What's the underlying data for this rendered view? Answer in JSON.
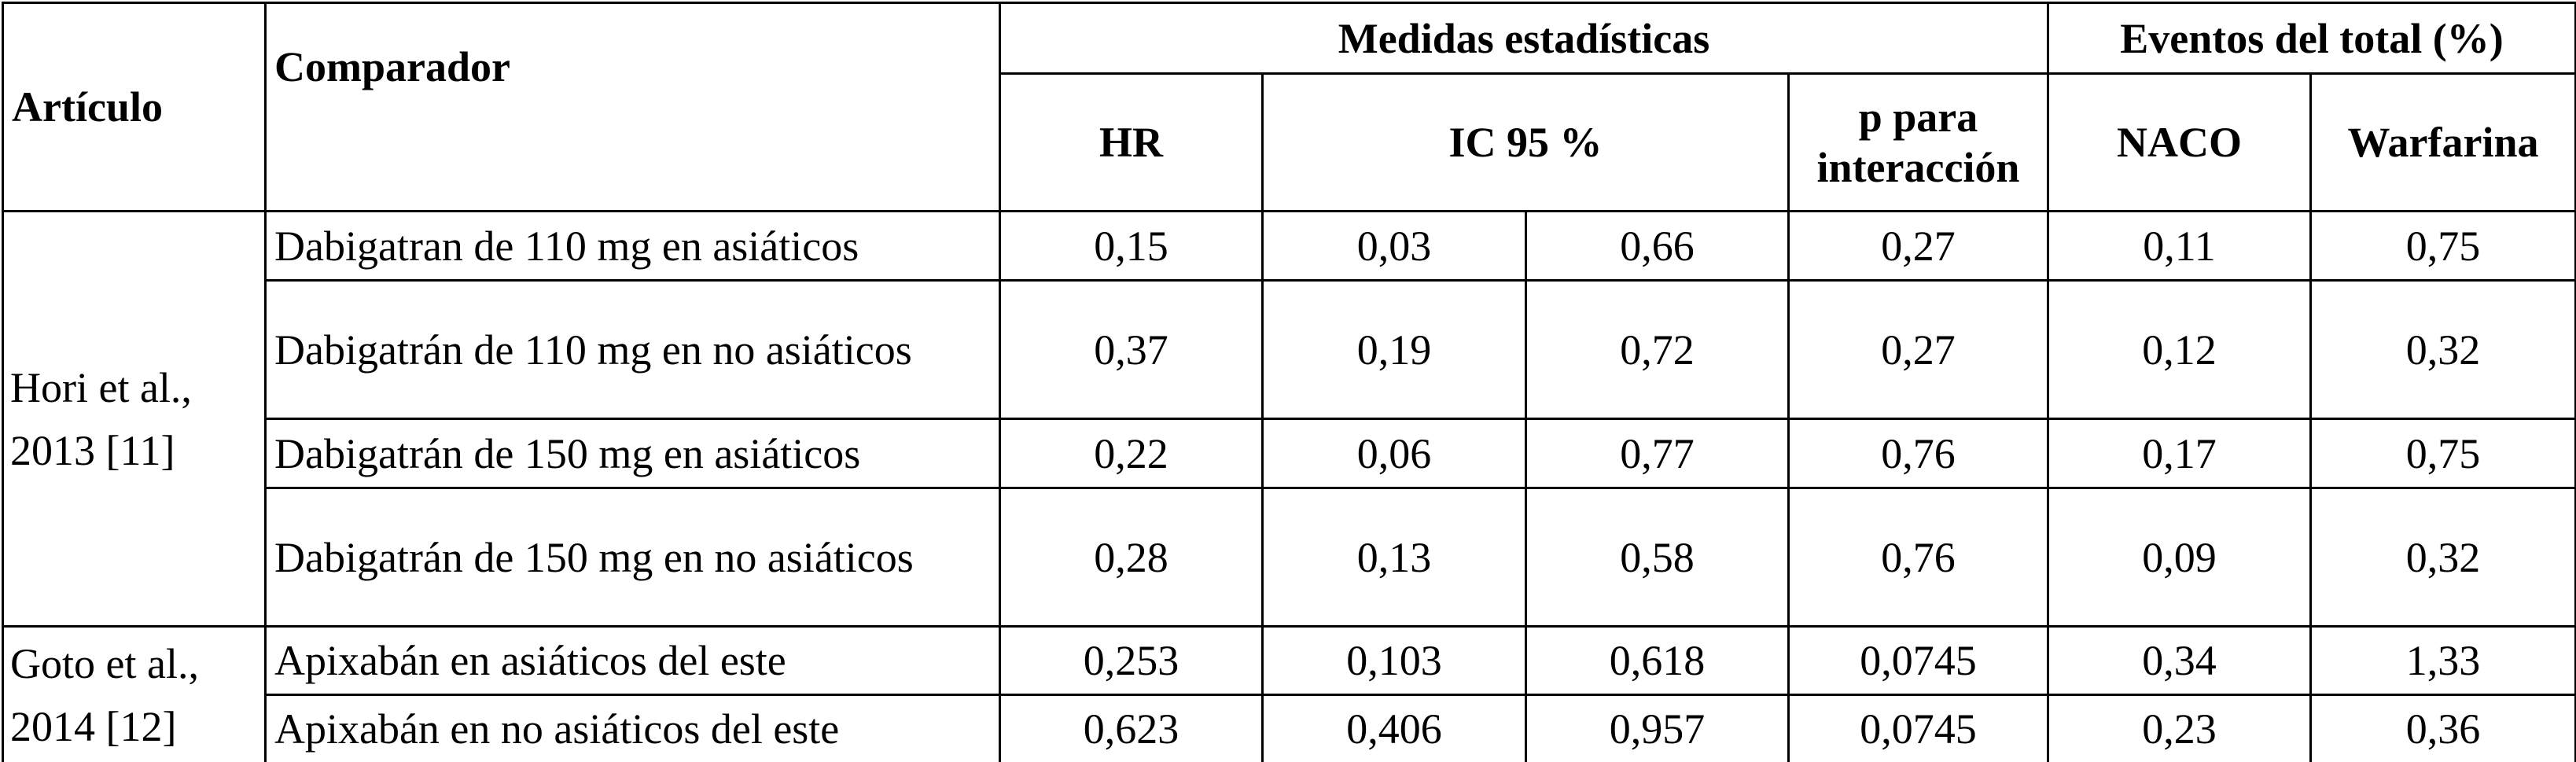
{
  "header": {
    "article": "Artículo",
    "comparator": "Comparador",
    "stats_group": "Medidas estadísticas",
    "events_group": "Eventos del total (%)",
    "hr": "HR",
    "ic": "IC 95 %",
    "p": "p para interacción",
    "naco": "NACO",
    "warfarina": "Warfarina"
  },
  "groups": [
    {
      "article": "Hori et al., 2013 [11]",
      "rows": [
        [
          "Dabigatran de 110 mg en asiáticos",
          "0,15",
          "0,03",
          "0,66",
          "0,27",
          "0,11",
          "0,75"
        ],
        [
          "Dabigatrán de 110 mg en no asiáticos",
          "0,37",
          "0,19",
          "0,72",
          "0,27",
          "0,12",
          "0,32"
        ],
        [
          "Dabigatrán de 150 mg en asiáticos",
          "0,22",
          "0,06",
          "0,77",
          "0,76",
          "0,17",
          "0,75"
        ],
        [
          "Dabigatrán de 150 mg en no asiáticos",
          "0,28",
          "0,13",
          "0,58",
          "0,76",
          "0,09",
          "0,32"
        ]
      ]
    },
    {
      "article": "Goto et al., 2014 [12]",
      "rows": [
        [
          "Apixabán en asiáticos del este",
          "0,253",
          "0,103",
          "0,618",
          "0,0745",
          "0,34",
          "1,33"
        ],
        [
          "Apixabán en no asiáticos del este",
          "0,623",
          "0,406",
          "0,957",
          "0,0745",
          "0,23",
          "0,36"
        ]
      ]
    }
  ]
}
